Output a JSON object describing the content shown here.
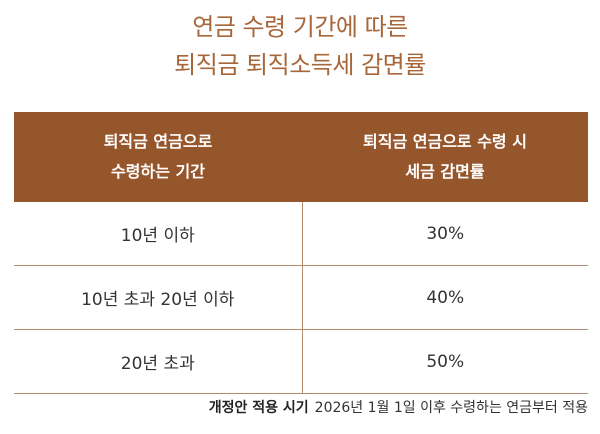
{
  "title": {
    "line1": "연금 수령 기간에 따른",
    "line2": "퇴직금 퇴직소득세 감면률"
  },
  "table": {
    "header": {
      "col1_line1": "퇴직금 연금으로",
      "col1_line2": "수령하는 기간",
      "col2_line1": "퇴직금 연금으로 수령 시",
      "col2_line2": "세금 감면률"
    },
    "rows": [
      {
        "period": "10년 이하",
        "rate": "30%"
      },
      {
        "period": "10년 초과 20년 이하",
        "rate": "40%"
      },
      {
        "period": "20년 초과",
        "rate": "50%"
      }
    ]
  },
  "note": {
    "label": "개정안 적용 시기",
    "text": "2026년 1월 1일 이후 수령하는 연금부터 적용"
  },
  "colors": {
    "title": "#a8673a",
    "header_bg": "#96562c",
    "row_border": "#b58c6f"
  }
}
